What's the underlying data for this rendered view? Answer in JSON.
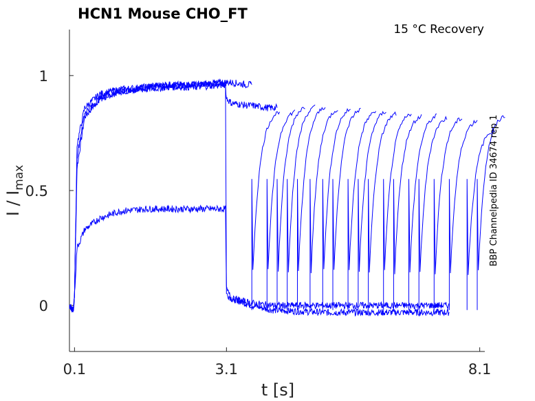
{
  "chart_data": {
    "type": "line",
    "title": "HCN1  Mouse  CHO_FT",
    "condition": "15 °C  Recovery",
    "side_label": "BBP Channelpedia ID 34674 rep 1",
    "xlabel": "t [s]",
    "ylabel_main": "I / I",
    "ylabel_sub": "max",
    "xlim": [
      0.0,
      8.2
    ],
    "ylim": [
      -0.2,
      1.2
    ],
    "x_ticks": [
      {
        "v": 0.1,
        "label": "0.1"
      },
      {
        "v": 3.1,
        "label": "3.1"
      },
      {
        "v": 8.1,
        "label": "8.1"
      }
    ],
    "y_ticks": [
      {
        "v": 0,
        "label": "0"
      },
      {
        "v": 0.5,
        "label": "0.5"
      },
      {
        "v": 1,
        "label": "1"
      }
    ],
    "color": "#0000ff",
    "grid": false,
    "series": [
      {
        "x": [
          0.0,
          0.08,
          0.1,
          0.15,
          0.3,
          0.6,
          1.0,
          1.5,
          2.0,
          2.5,
          3.08,
          3.1,
          3.2,
          3.6,
          4.0,
          5.0,
          6.0,
          7.0,
          7.5
        ],
        "y": [
          0.0,
          -0.02,
          0.05,
          0.6,
          0.82,
          0.9,
          0.93,
          0.95,
          0.96,
          0.96,
          0.97,
          0.05,
          0.03,
          0.0,
          -0.02,
          -0.03,
          -0.03,
          -0.03,
          -0.03
        ]
      },
      {
        "x": [
          0.0,
          0.08,
          0.1,
          0.15,
          0.3,
          0.6,
          1.0,
          1.5,
          2.0,
          2.5,
          3.08,
          3.1,
          3.2,
          3.5,
          3.6
        ],
        "y": [
          0.0,
          -0.02,
          0.05,
          0.7,
          0.86,
          0.92,
          0.94,
          0.95,
          0.96,
          0.96,
          0.97,
          0.97,
          0.97,
          0.96,
          0.96
        ]
      },
      {
        "x": [
          0.0,
          0.08,
          0.1,
          0.15,
          0.3,
          0.6,
          1.0,
          1.5,
          2.0,
          2.5,
          3.08,
          3.1,
          3.2,
          3.5,
          3.6,
          3.9,
          4.1
        ],
        "y": [
          0.0,
          -0.02,
          0.05,
          0.65,
          0.84,
          0.9,
          0.93,
          0.94,
          0.95,
          0.95,
          0.96,
          0.9,
          0.88,
          0.87,
          0.87,
          0.86,
          0.86
        ]
      },
      {
        "x": [
          0.0,
          0.08,
          0.1,
          0.15,
          0.3,
          0.6,
          1.0,
          1.5,
          2.0,
          2.5,
          3.08,
          3.1,
          3.2,
          3.6,
          4.0,
          5.0,
          6.0,
          7.0,
          7.5
        ],
        "y": [
          0.0,
          -0.02,
          0.05,
          0.25,
          0.33,
          0.38,
          0.41,
          0.42,
          0.42,
          0.42,
          0.42,
          0.07,
          0.03,
          0.01,
          0.0,
          0.0,
          0.0,
          0.0,
          0.0
        ]
      }
    ],
    "recovery_steps": [
      {
        "t": 3.6,
        "peak": 0.86
      },
      {
        "t": 3.9,
        "peak": 0.86
      },
      {
        "t": 4.1,
        "peak": 0.88
      },
      {
        "t": 4.3,
        "peak": 0.88
      },
      {
        "t": 4.5,
        "peak": 0.88
      },
      {
        "t": 4.75,
        "peak": 0.87
      },
      {
        "t": 5.0,
        "peak": 0.87
      },
      {
        "t": 5.2,
        "peak": 0.87
      },
      {
        "t": 5.5,
        "peak": 0.86
      },
      {
        "t": 5.7,
        "peak": 0.86
      },
      {
        "t": 5.9,
        "peak": 0.85
      },
      {
        "t": 6.2,
        "peak": 0.85
      },
      {
        "t": 6.4,
        "peak": 0.84
      },
      {
        "t": 6.7,
        "peak": 0.84
      },
      {
        "t": 6.9,
        "peak": 0.83
      },
      {
        "t": 7.2,
        "peak": 0.83
      },
      {
        "t": 7.5,
        "peak": 0.82
      },
      {
        "t": 7.85,
        "peak": 0.78
      },
      {
        "t": 8.05,
        "peak": 0.84
      }
    ]
  }
}
